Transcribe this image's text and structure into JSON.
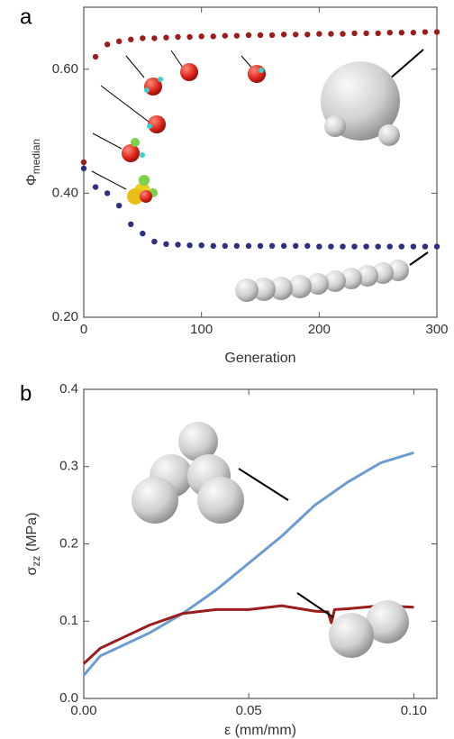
{
  "chart_data": [
    {
      "type": "scatter",
      "panel": "a",
      "xlabel": "Generation",
      "ylabel": "Φ",
      "ylabel_sub": "median",
      "x": [
        0,
        10,
        20,
        30,
        40,
        50,
        60,
        70,
        80,
        90,
        100,
        110,
        120,
        130,
        140,
        150,
        160,
        170,
        180,
        190,
        200,
        210,
        220,
        230,
        240,
        250,
        260,
        270,
        280,
        290,
        300
      ],
      "series": [
        {
          "color": "#9b1c1c",
          "values": [
            0.45,
            0.62,
            0.64,
            0.645,
            0.648,
            0.65,
            0.65,
            0.651,
            0.652,
            0.652,
            0.653,
            0.653,
            0.654,
            0.654,
            0.655,
            0.655,
            0.655,
            0.656,
            0.656,
            0.656,
            0.657,
            0.657,
            0.657,
            0.658,
            0.658,
            0.658,
            0.659,
            0.659,
            0.659,
            0.66,
            0.66
          ]
        },
        {
          "color": "#2e2f7f",
          "values": [
            0.44,
            0.41,
            0.4,
            0.38,
            0.35,
            0.335,
            0.322,
            0.318,
            0.317,
            0.316,
            0.316,
            0.315,
            0.315,
            0.315,
            0.315,
            0.315,
            0.315,
            0.315,
            0.315,
            0.315,
            0.314,
            0.314,
            0.314,
            0.314,
            0.314,
            0.314,
            0.314,
            0.314,
            0.314,
            0.314,
            0.314
          ]
        }
      ],
      "xlim": [
        0,
        300
      ],
      "xticks": [
        0,
        100,
        200,
        300
      ],
      "ylim": [
        0.2,
        0.7
      ],
      "yticks": [
        {
          "value": 0.2,
          "label": "0.20"
        },
        {
          "value": 0.4,
          "label": "0.40"
        },
        {
          "value": 0.6,
          "label": "0.60"
        }
      ]
    },
    {
      "type": "line",
      "panel": "b",
      "xlabel": "ε (mm/mm)",
      "ylabel": "σ",
      "ylabel_sub": "zz",
      "ylabel_unit": " (MPa)",
      "x": [
        0,
        0.005,
        0.01,
        0.02,
        0.03,
        0.04,
        0.05,
        0.06,
        0.07,
        0.074,
        0.075,
        0.076,
        0.08,
        0.09,
        0.1
      ],
      "series": [
        {
          "color": "#6b9bd1",
          "values": [
            0.03,
            0.055,
            0.065,
            0.085,
            0.11,
            0.14,
            0.175,
            0.21,
            0.25,
            0.262,
            0.265,
            0.268,
            0.28,
            0.305,
            0.318
          ]
        },
        {
          "color": "#9b1c1c",
          "values": [
            0.045,
            0.065,
            0.075,
            0.095,
            0.11,
            0.115,
            0.115,
            0.12,
            0.113,
            0.112,
            0.098,
            0.115,
            0.116,
            0.12,
            0.118
          ]
        }
      ],
      "xlim": [
        0,
        0.107
      ],
      "xticks": [
        {
          "value": 0,
          "label": "0.00"
        },
        {
          "value": 0.05,
          "label": "0.05"
        },
        {
          "value": 0.1,
          "label": "0.10"
        }
      ],
      "ylim": [
        0,
        0.4
      ],
      "yticks": [
        {
          "value": 0,
          "label": "0.0"
        },
        {
          "value": 0.1,
          "label": "0.1"
        },
        {
          "value": 0.2,
          "label": "0.2"
        },
        {
          "value": 0.3,
          "label": "0.3"
        },
        {
          "value": 0.4,
          "label": "0.4"
        }
      ]
    }
  ]
}
